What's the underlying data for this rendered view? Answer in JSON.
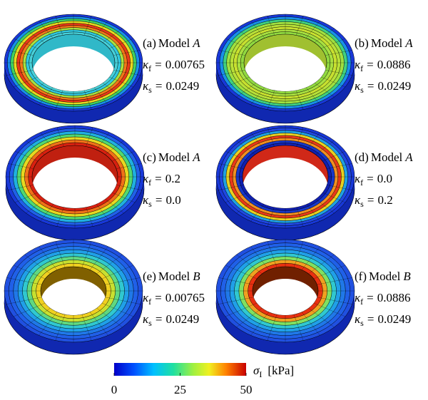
{
  "panels": [
    {
      "tag": "(a)",
      "model": "Model",
      "letter": "A",
      "kappa_f": {
        "symbol": "κ",
        "sub": "f",
        "eq": "=",
        "value": "0.00765"
      },
      "kappa_s": {
        "symbol": "κ",
        "sub": "s",
        "eq": "=",
        "value": "0.0249"
      }
    },
    {
      "tag": "(b)",
      "model": "Model",
      "letter": "A",
      "kappa_f": {
        "symbol": "κ",
        "sub": "f",
        "eq": "=",
        "value": "0.0886"
      },
      "kappa_s": {
        "symbol": "κ",
        "sub": "s",
        "eq": "=",
        "value": "0.0249"
      }
    },
    {
      "tag": "(c)",
      "model": "Model",
      "letter": "A",
      "kappa_f": {
        "symbol": "κ",
        "sub": "f",
        "eq": "=",
        "value": "0.2"
      },
      "kappa_s": {
        "symbol": "κ",
        "sub": "s",
        "eq": "=",
        "value": "0.0"
      }
    },
    {
      "tag": "(d)",
      "model": "Model",
      "letter": "A",
      "kappa_f": {
        "symbol": "κ",
        "sub": "f",
        "eq": "=",
        "value": "0.0"
      },
      "kappa_s": {
        "symbol": "κ",
        "sub": "s",
        "eq": "=",
        "value": "0.2"
      }
    },
    {
      "tag": "(e)",
      "model": "Model",
      "letter": "B",
      "kappa_f": {
        "symbol": "κ",
        "sub": "f",
        "eq": "=",
        "value": "0.00765"
      },
      "kappa_s": {
        "symbol": "κ",
        "sub": "s",
        "eq": "=",
        "value": "0.0249"
      }
    },
    {
      "tag": "(f)",
      "model": "Model",
      "letter": "B",
      "kappa_f": {
        "symbol": "κ",
        "sub": "f",
        "eq": "=",
        "value": "0.0886"
      },
      "kappa_s": {
        "symbol": "κ",
        "sub": "s",
        "eq": "=",
        "value": "0.0249"
      }
    }
  ],
  "colorbar": {
    "symbol": "σ",
    "sub": "I",
    "unit": "[kPa]",
    "lim": [
      0,
      50
    ],
    "ticks": [
      0,
      25,
      50
    ]
  }
}
